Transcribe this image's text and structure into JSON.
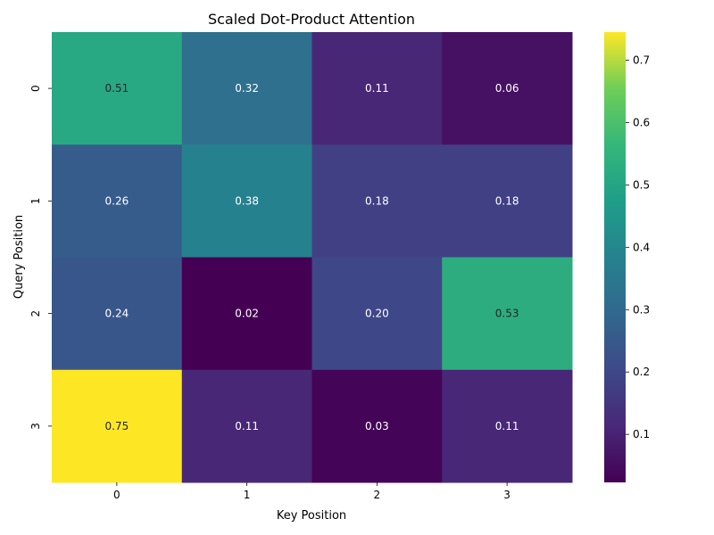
{
  "chart_data": {
    "type": "heatmap",
    "title": "Scaled Dot-Product Attention",
    "xlabel": "Key Position",
    "ylabel": "Query Position",
    "x_categories": [
      "0",
      "1",
      "2",
      "3"
    ],
    "y_categories": [
      "0",
      "1",
      "2",
      "3"
    ],
    "values": [
      [
        0.51,
        0.32,
        0.11,
        0.06
      ],
      [
        0.26,
        0.38,
        0.18,
        0.18
      ],
      [
        0.24,
        0.02,
        0.2,
        0.53
      ],
      [
        0.75,
        0.11,
        0.03,
        0.11
      ]
    ],
    "cell_labels": [
      [
        "0.51",
        "0.32",
        "0.11",
        "0.06"
      ],
      [
        "0.26",
        "0.38",
        "0.18",
        "0.18"
      ],
      [
        "0.24",
        "0.02",
        "0.20",
        "0.53"
      ],
      [
        "0.75",
        "0.11",
        "0.03",
        "0.11"
      ]
    ],
    "colormap": "viridis",
    "color_range": [
      0.023,
      0.745
    ],
    "colorbar_ticks": [
      0.1,
      0.2,
      0.3,
      0.4,
      0.5,
      0.6,
      0.7
    ],
    "colorbar_tick_labels": [
      "0.1",
      "0.2",
      "0.3",
      "0.4",
      "0.5",
      "0.6",
      "0.7"
    ],
    "colorbar_position": "right"
  }
}
